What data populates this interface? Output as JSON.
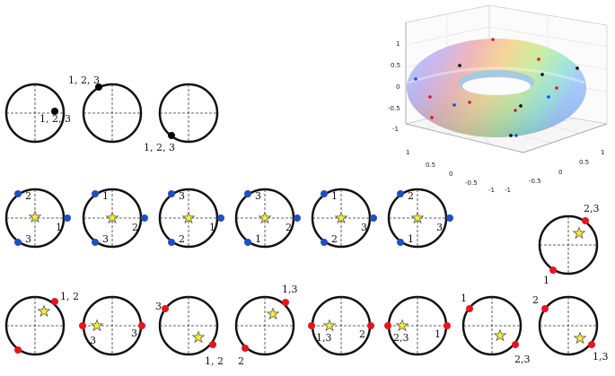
{
  "colors": {
    "black_point": "#000000",
    "blue_point": "#1f4fbf",
    "red_point": "#e8141e",
    "star_fill": "#f5ef3a",
    "circle_stroke": "#111111"
  },
  "row1": [
    {
      "label": "1, 2, 3"
    },
    {
      "label": "1, 2, 3"
    },
    {
      "label": "1, 2, 3"
    }
  ],
  "row2": [
    {
      "labels": [
        "2",
        "1",
        "3"
      ]
    },
    {
      "labels": [
        "1",
        "2",
        "3"
      ]
    },
    {
      "labels": [
        "3",
        "1",
        "2"
      ]
    },
    {
      "labels": [
        "3",
        "2",
        "1"
      ]
    },
    {
      "labels": [
        "1",
        "3",
        "2"
      ]
    },
    {
      "labels": [
        "2",
        "3",
        "1"
      ]
    }
  ],
  "row2_right": {
    "labels": [
      "2,3",
      "1"
    ]
  },
  "row3": [
    {
      "labels": [
        "1, 2",
        "3"
      ]
    },
    {
      "labels": [
        "3",
        "1, 2"
      ]
    },
    {
      "labels": [
        "3",
        "1, 2"
      ]
    },
    {
      "labels": [
        "1,3",
        "2"
      ]
    },
    {
      "labels": [
        "1,3",
        "2"
      ]
    },
    {
      "labels": [
        "2,3",
        "1"
      ]
    },
    {
      "labels": [
        "1",
        "2,3"
      ]
    },
    {
      "labels": [
        "2",
        "1,3"
      ]
    }
  ],
  "torus_plot": {
    "z_ticks": [
      "1",
      "0.5",
      "0",
      "-0.5",
      "-1"
    ],
    "x_ticks": [
      "1",
      "0.5",
      "0",
      "-0.5",
      "-1"
    ],
    "y_ticks": [
      "-1",
      "-0.5",
      "0",
      "0.5",
      "1"
    ]
  }
}
